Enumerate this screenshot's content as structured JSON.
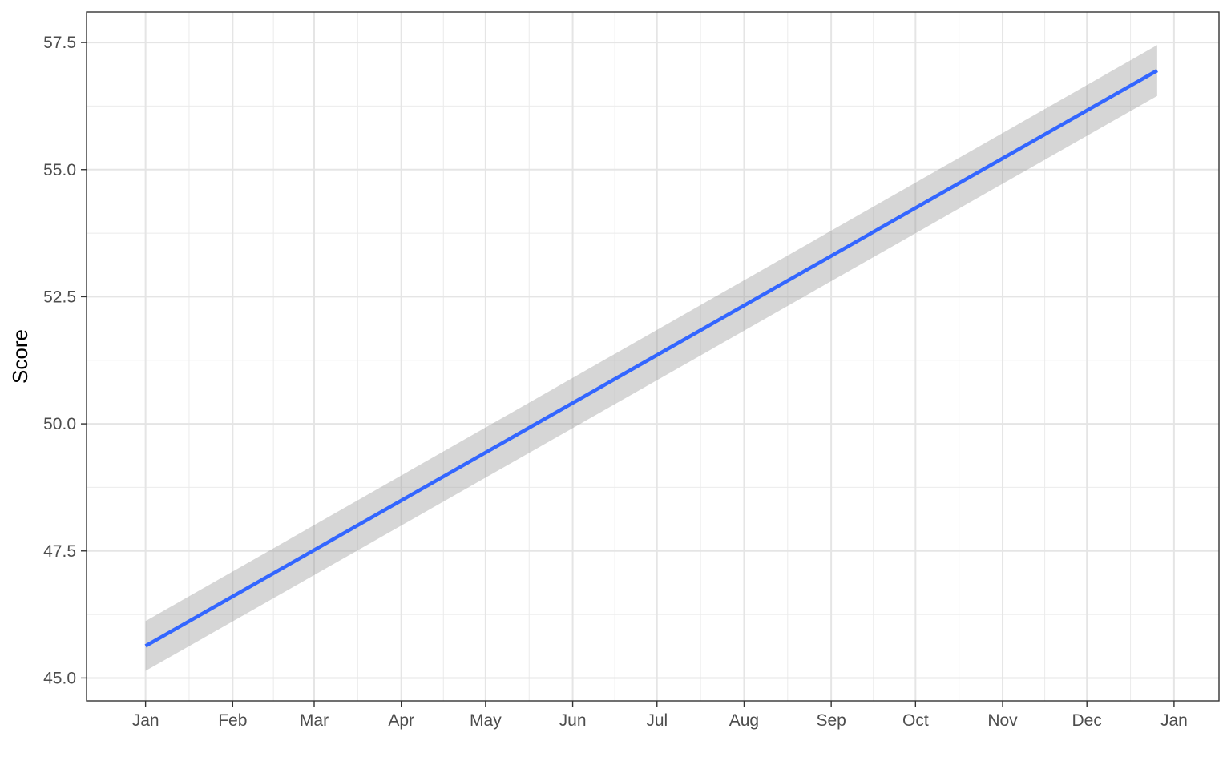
{
  "chart_data": {
    "type": "line",
    "title": "",
    "xlabel": "",
    "ylabel": "Score",
    "x_tick_labels": [
      "Jan",
      "Feb",
      "Mar",
      "Apr",
      "May",
      "Jun",
      "Jul",
      "Aug",
      "Sep",
      "Oct",
      "Nov",
      "Dec",
      "Jan"
    ],
    "x_tick_dates": [
      "2020-01-01",
      "2020-02-01",
      "2020-03-01",
      "2020-04-01",
      "2020-05-01",
      "2020-06-01",
      "2020-07-01",
      "2020-08-01",
      "2020-09-01",
      "2020-10-01",
      "2020-11-01",
      "2020-12-01",
      "2021-01-01"
    ],
    "y_ticks": [
      45.0,
      47.5,
      50.0,
      52.5,
      55.0,
      57.5
    ],
    "y_tick_labels": [
      "45.0",
      "47.5",
      "50.0",
      "52.5",
      "55.0",
      "57.5"
    ],
    "xlim": [
      "2019-12-11",
      "2021-01-17"
    ],
    "ylim": [
      44.55,
      58.1
    ],
    "grid": true,
    "legend": "none",
    "series": [
      {
        "x": [
          "2020-01-01",
          "2020-12-26"
        ],
        "y": [
          45.63,
          56.95
        ],
        "ci_lower": [
          45.14,
          56.45
        ],
        "ci_upper": [
          46.12,
          57.45
        ],
        "color": "#3366ff",
        "band_color": "#999999"
      }
    ]
  }
}
